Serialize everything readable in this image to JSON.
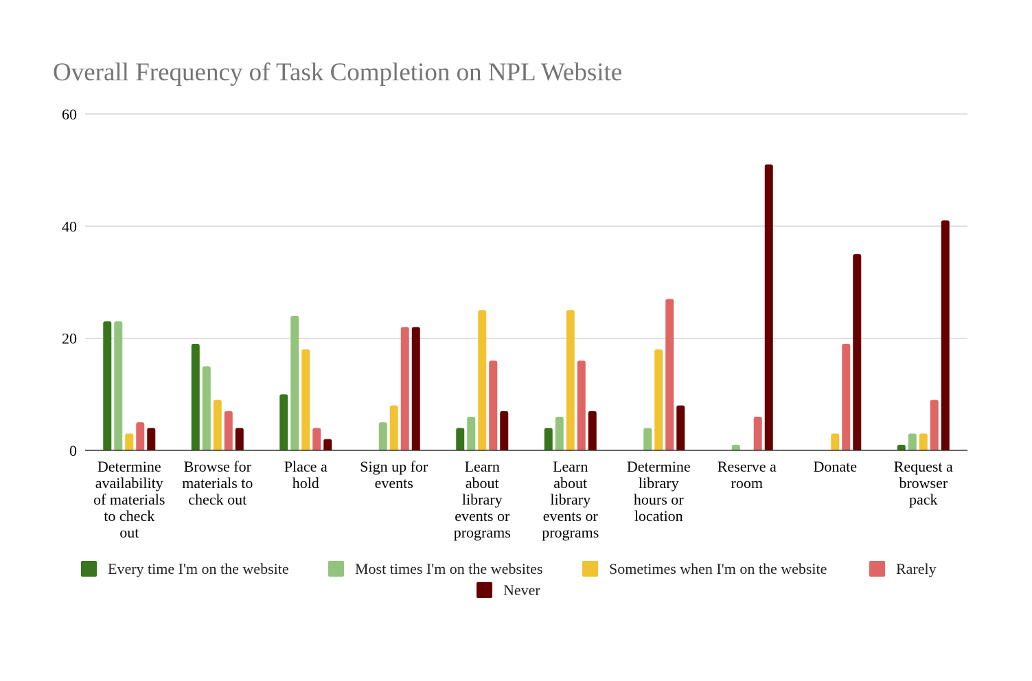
{
  "chart_data": {
    "type": "bar",
    "title": "Overall Frequency of Task Completion on NPL Website",
    "xlabel": "",
    "ylabel": "",
    "ylim": [
      0,
      60
    ],
    "yticks": [
      0,
      20,
      40,
      60
    ],
    "grid": true,
    "legend_position": "bottom",
    "categories": [
      [
        "Determine",
        "availability",
        "of materials",
        "to check",
        "out"
      ],
      [
        "Browse for",
        "materials to",
        "check out"
      ],
      [
        "Place a",
        "hold"
      ],
      [
        "Sign up for",
        "events"
      ],
      [
        "Learn",
        "about",
        "library",
        "events or",
        "programs"
      ],
      [
        "Learn",
        "about",
        "library",
        "events or",
        "programs"
      ],
      [
        "Determine",
        "library",
        "hours or",
        "location"
      ],
      [
        "Reserve a",
        "room"
      ],
      [
        "Donate"
      ],
      [
        "Request a",
        "browser",
        "pack"
      ]
    ],
    "series": [
      {
        "name": "Every time I'm on the website",
        "color": "#38761d",
        "values": [
          23,
          19,
          10,
          0,
          4,
          4,
          0,
          0,
          0,
          1
        ]
      },
      {
        "name": "Most times I'm on the websites",
        "color": "#93c47d",
        "values": [
          23,
          15,
          24,
          5,
          6,
          6,
          4,
          1,
          0,
          3
        ]
      },
      {
        "name": "Sometimes when I'm on the website",
        "color": "#f1c232",
        "values": [
          3,
          9,
          18,
          8,
          25,
          25,
          18,
          0,
          3,
          3
        ]
      },
      {
        "name": "Rarely",
        "color": "#e06666",
        "values": [
          5,
          7,
          4,
          22,
          16,
          16,
          27,
          6,
          19,
          9
        ]
      },
      {
        "name": "Never",
        "color": "#660000",
        "values": [
          4,
          4,
          2,
          22,
          7,
          7,
          8,
          51,
          35,
          41
        ]
      }
    ]
  }
}
